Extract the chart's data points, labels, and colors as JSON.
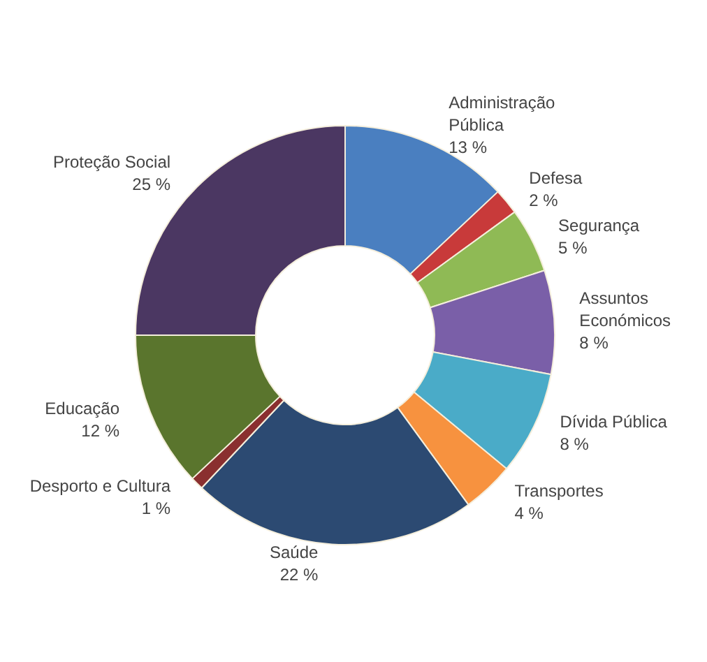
{
  "chart_data": {
    "type": "donut",
    "categories": [
      "Administração Pública",
      "Defesa",
      "Segurança",
      "Assuntos Económicos",
      "Dívida Pública",
      "Transportes",
      "Saúde",
      "Desporto e Cultura",
      "Educação",
      "Proteção Social"
    ],
    "values": [
      13,
      2,
      5,
      8,
      8,
      4,
      22,
      1,
      12,
      25
    ],
    "colors": [
      "#4a7fc0",
      "#c83a3a",
      "#8fba55",
      "#7a5fa8",
      "#4aabc8",
      "#f7923f",
      "#2c4a72",
      "#8a2f2f",
      "#5a752d",
      "#4b3762"
    ],
    "value_labels": [
      "13 %",
      "2 %",
      "5 %",
      "8 %",
      "8 %",
      "4 %",
      "22 %",
      "1 %",
      "12 %",
      "25 %"
    ]
  }
}
